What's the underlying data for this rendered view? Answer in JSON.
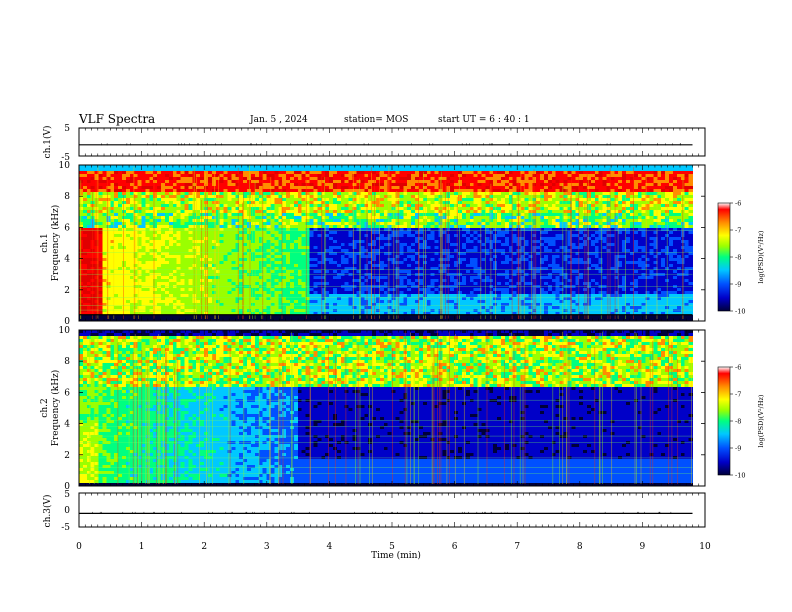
{
  "header": {
    "title": "VLF Spectra",
    "date": "Jan. 5 , 2024",
    "station": "station= MOS",
    "start_ut": "start UT =   6 : 40 : 1"
  },
  "chart_data": [
    {
      "type": "line",
      "name": "ch1-waveform",
      "ylabel": "ch.1(V)",
      "ylim": [
        -5,
        5
      ],
      "yticks": [
        "5",
        "-5"
      ],
      "x": [
        0,
        1,
        2,
        3,
        4,
        5,
        6,
        7,
        8,
        9,
        9.8
      ],
      "y": [
        -1,
        -1,
        -1,
        -1,
        -1,
        -1,
        -1,
        -1,
        -1,
        -1,
        -1
      ]
    },
    {
      "type": "heatmap",
      "name": "ch1-spectrogram",
      "ylabel": "ch.1\nFrequency (kHz)",
      "ylim": [
        0,
        10
      ],
      "yticks": [
        "0",
        "2",
        "4",
        "6",
        "8",
        "10"
      ],
      "xlim": [
        0,
        10
      ],
      "colorbar": {
        "label": "log(PSD)(V²/Hz)",
        "ticks": [
          "-6",
          "-7",
          "-8",
          "-9",
          "-10"
        ],
        "range": [
          -10,
          -6
        ]
      }
    },
    {
      "type": "heatmap",
      "name": "ch2-spectrogram",
      "ylabel": "ch.2\nFrequency (kHz)",
      "ylim": [
        0,
        10
      ],
      "yticks": [
        "0",
        "2",
        "4",
        "6",
        "8",
        "10"
      ],
      "xlim": [
        0,
        10
      ],
      "colorbar": {
        "label": "log(PSD)(V²/Hz)",
        "ticks": [
          "-6",
          "-7",
          "-8",
          "-9",
          "-10"
        ],
        "range": [
          -10,
          -6
        ]
      }
    },
    {
      "type": "line",
      "name": "ch3-waveform",
      "ylabel": "ch.3(V)",
      "ylim": [
        -5,
        5
      ],
      "yticks": [
        "5",
        "0",
        "-5"
      ],
      "x": [
        0,
        1,
        2,
        3,
        4,
        5,
        6,
        7,
        8,
        9,
        9.8
      ],
      "y": [
        -1,
        -1,
        -1,
        -1,
        -1,
        -1,
        -1,
        -1,
        -1,
        -1,
        -1
      ]
    }
  ],
  "x_axis": {
    "label": "Time (min)",
    "ticks": [
      "0",
      "1",
      "2",
      "3",
      "4",
      "5",
      "6",
      "7",
      "8",
      "9",
      "10"
    ],
    "xlim": [
      0,
      10
    ],
    "data_end": 9.8
  },
  "colors": {
    "colormap": [
      "#00003a",
      "#0000c8",
      "#0050ff",
      "#00c8ff",
      "#00ff80",
      "#9aff00",
      "#ffff00",
      "#ff8c00",
      "#ff0000",
      "#e00000"
    ]
  }
}
